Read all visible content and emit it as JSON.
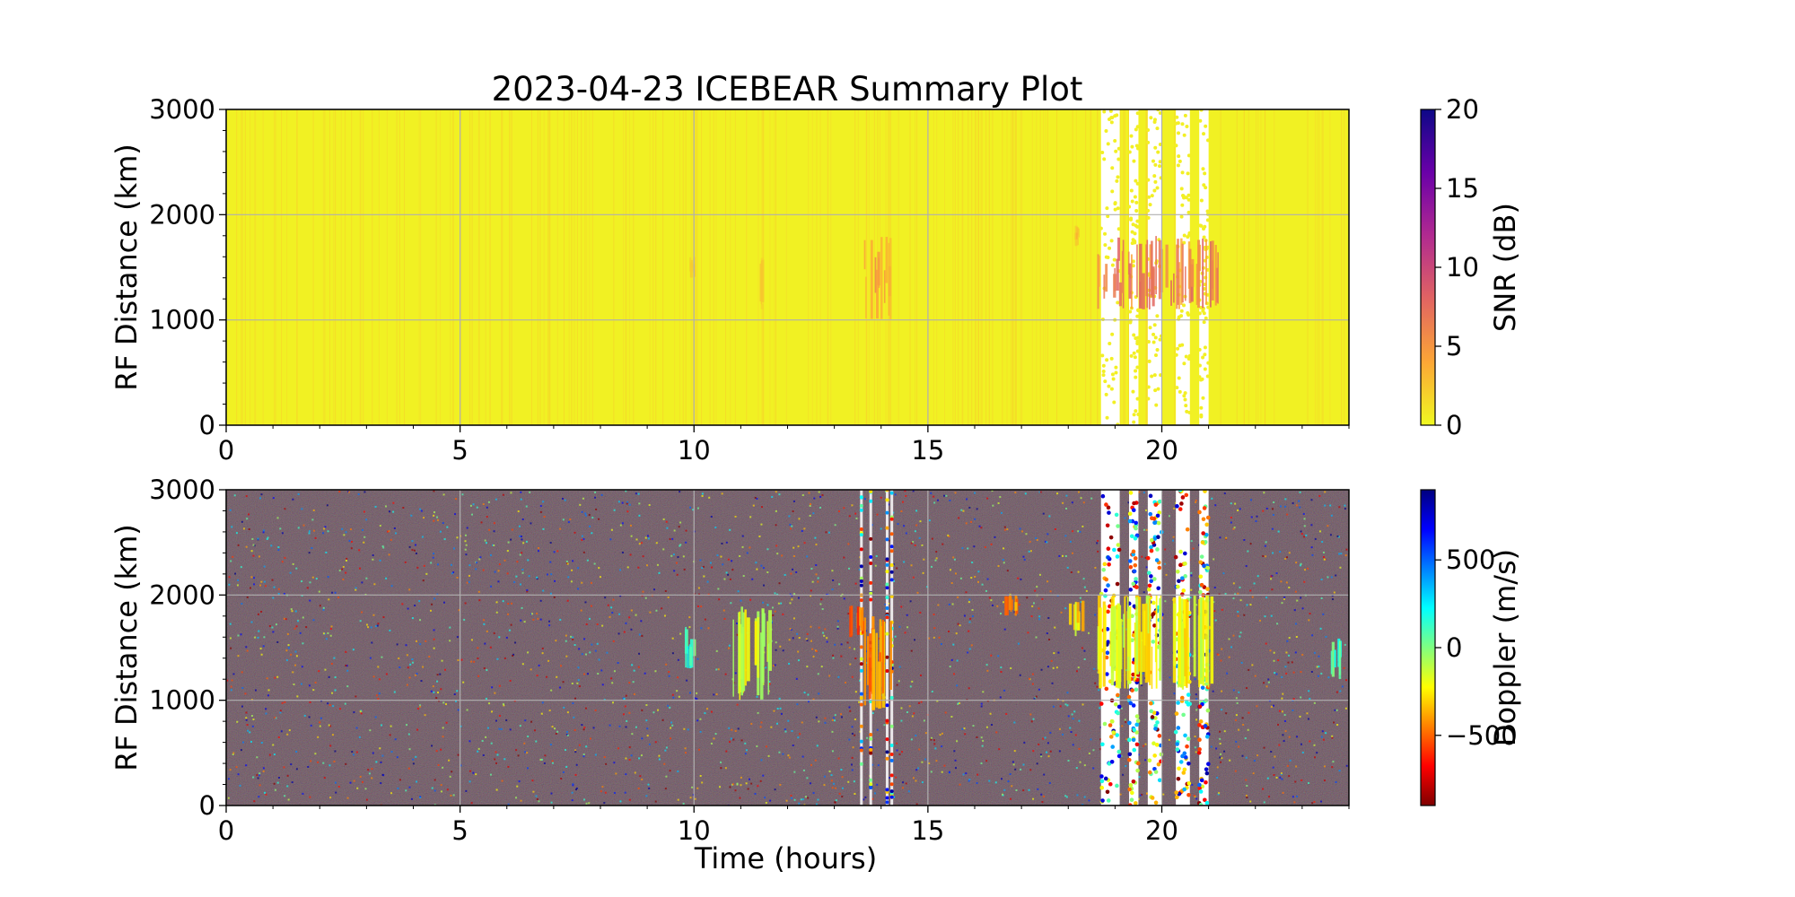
{
  "figure": {
    "title": "2023-04-23 ICEBEAR Summary Plot",
    "xlabel": "Time (hours)"
  },
  "chart_data": [
    {
      "type": "heatmap",
      "panel": "top",
      "title": "2023-04-23 ICEBEAR Summary Plot",
      "xlabel": "",
      "ylabel": "RF Distance (km)",
      "xlim": [
        0,
        24
      ],
      "ylim": [
        0,
        3000
      ],
      "xticks": [
        0,
        5,
        10,
        15,
        20
      ],
      "yticks": [
        0,
        1000,
        2000,
        3000
      ],
      "grid": true,
      "colorbar": {
        "label": "SNR (dB)",
        "range": [
          0,
          20
        ],
        "ticks": [
          0,
          5,
          10,
          15,
          20
        ],
        "colormap": "plasma_r",
        "colors": [
          "#f0f921",
          "#fca636",
          "#e16462",
          "#b12a90",
          "#6a00a8",
          "#0d0887"
        ]
      },
      "background_value": 0,
      "data_gaps_hours": [
        [
          18.7,
          19.1
        ],
        [
          19.3,
          19.5
        ],
        [
          19.7,
          20.0
        ],
        [
          20.3,
          20.6
        ],
        [
          20.8,
          21.0
        ]
      ],
      "echo_regions": [
        {
          "t_start": 9.9,
          "t_end": 10.0,
          "r_min": 1400,
          "r_max": 1600,
          "snr": 3
        },
        {
          "t_start": 11.4,
          "t_end": 11.5,
          "r_min": 1100,
          "r_max": 1600,
          "snr": 2
        },
        {
          "t_start": 13.6,
          "t_end": 14.2,
          "r_min": 1000,
          "r_max": 1800,
          "snr": 5
        },
        {
          "t_start": 18.1,
          "t_end": 18.2,
          "r_min": 1700,
          "r_max": 1900,
          "snr": 3
        },
        {
          "t_start": 18.6,
          "t_end": 21.2,
          "r_min": 1100,
          "r_max": 1800,
          "snr": 7
        }
      ]
    },
    {
      "type": "heatmap",
      "panel": "bottom",
      "title": "",
      "xlabel": "Time (hours)",
      "ylabel": "RF Distance (km)",
      "xlim": [
        0,
        24
      ],
      "ylim": [
        0,
        3000
      ],
      "xticks": [
        0,
        5,
        10,
        15,
        20
      ],
      "yticks": [
        0,
        1000,
        2000,
        3000
      ],
      "grid": true,
      "colorbar": {
        "label": "Doppler (m/s)",
        "range": [
          -900,
          900
        ],
        "ticks": [
          -500,
          0,
          500
        ],
        "tick_labels": [
          "−500",
          "0",
          "500"
        ],
        "colormap": "jet_r",
        "colors": [
          "#7f0000",
          "#ff0000",
          "#ff8000",
          "#ffff00",
          "#80ff80",
          "#00ffff",
          "#0080ff",
          "#0000ff",
          "#00007f"
        ]
      },
      "data_gaps_hours": [
        [
          18.7,
          19.1
        ],
        [
          19.3,
          19.5
        ],
        [
          19.7,
          20.0
        ],
        [
          20.3,
          20.6
        ],
        [
          20.8,
          21.0
        ]
      ],
      "echo_regions": [
        {
          "t_start": 9.8,
          "t_end": 10.0,
          "r_min": 1300,
          "r_max": 1700,
          "doppler": 100
        },
        {
          "t_start": 10.8,
          "t_end": 11.6,
          "r_min": 1000,
          "r_max": 1900,
          "doppler": -150
        },
        {
          "t_start": 13.3,
          "t_end": 13.6,
          "r_min": 1600,
          "r_max": 1900,
          "doppler": -500
        },
        {
          "t_start": 13.6,
          "t_end": 14.2,
          "r_min": 900,
          "r_max": 1800,
          "doppler": -400
        },
        {
          "t_start": 16.6,
          "t_end": 16.9,
          "r_min": 1800,
          "r_max": 2000,
          "doppler": -400
        },
        {
          "t_start": 18.0,
          "t_end": 18.3,
          "r_min": 1600,
          "r_max": 1950,
          "doppler": -250
        },
        {
          "t_start": 18.6,
          "t_end": 21.2,
          "r_min": 1100,
          "r_max": 2000,
          "doppler": -200
        },
        {
          "t_start": 23.6,
          "t_end": 23.8,
          "r_min": 1200,
          "r_max": 1600,
          "doppler": 100
        }
      ]
    }
  ]
}
